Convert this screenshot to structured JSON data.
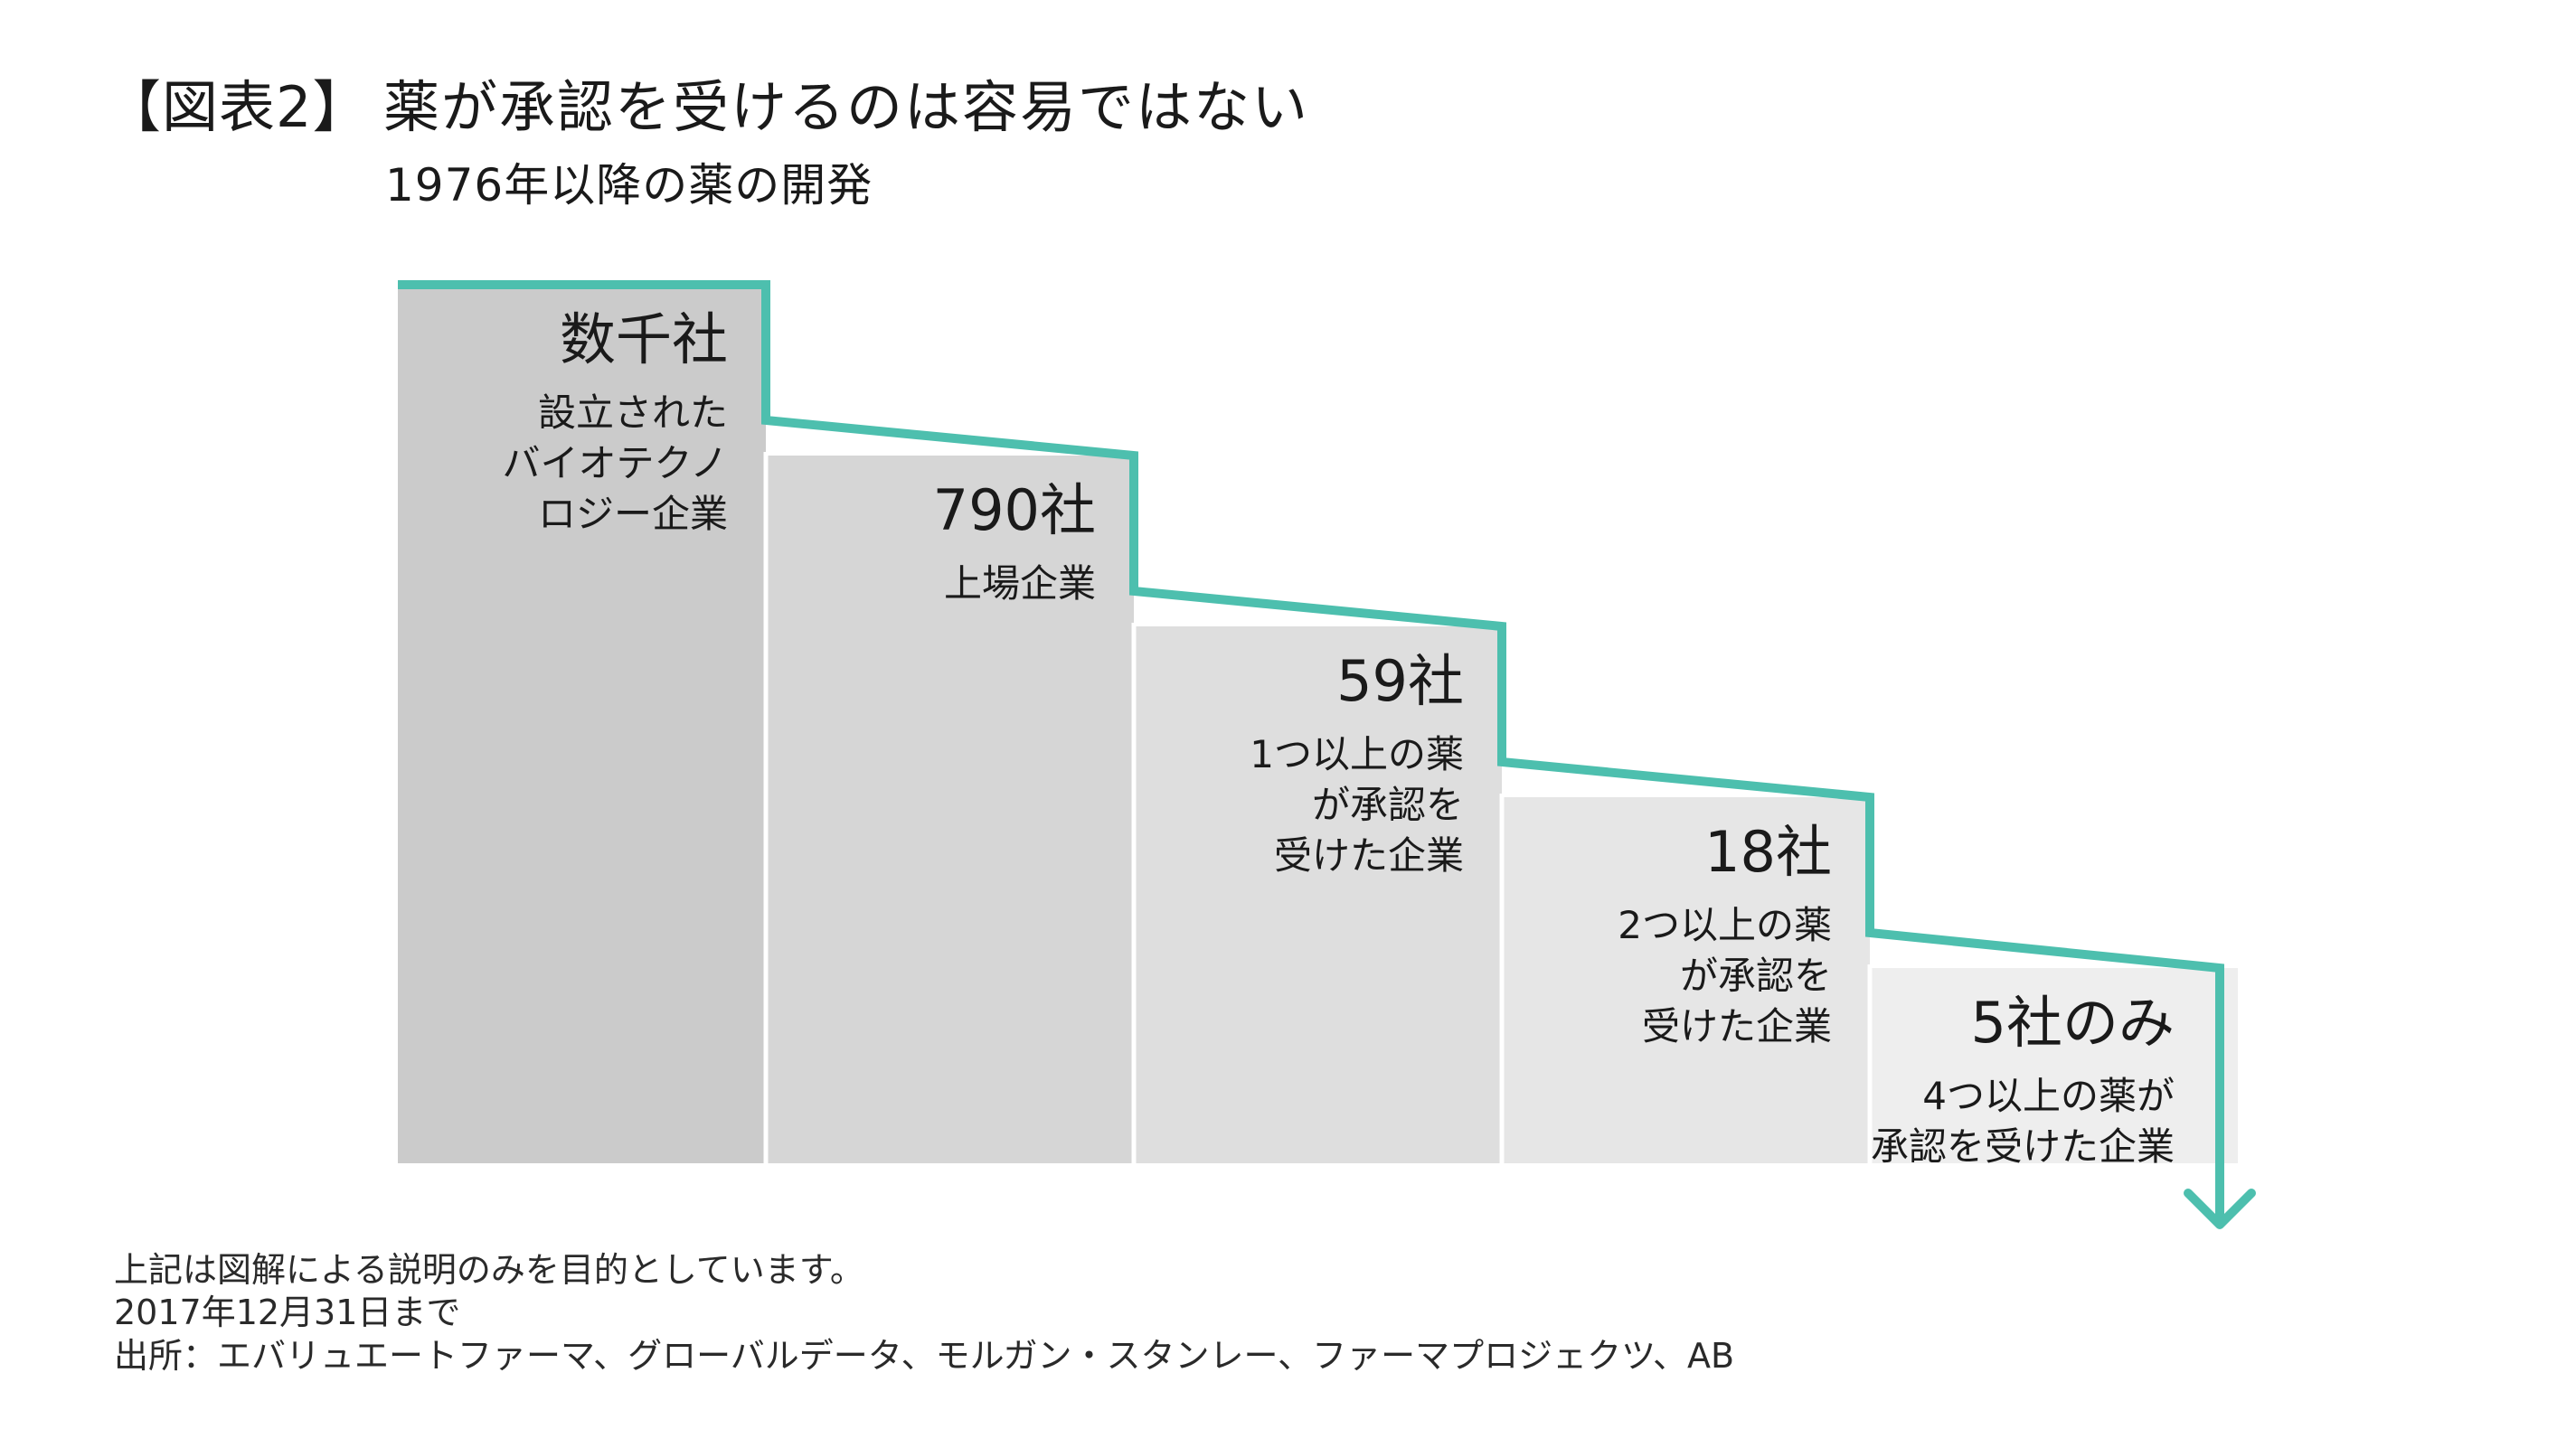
{
  "header": {
    "figure_label": "【図表2】",
    "title": "薬が承認を受けるのは容易ではない",
    "subtitle": "1976年以降の薬の開発"
  },
  "colors": {
    "accent": "#4dbfae",
    "bar_shades": [
      "#cbcbcb",
      "#d6d6d6",
      "#dedede",
      "#e6e6e6",
      "#eeeeee"
    ],
    "text": "#1a1a1a"
  },
  "chart_data": {
    "type": "bar",
    "title": "",
    "xlabel": "",
    "ylabel": "",
    "categories": [
      "数千社",
      "790社",
      "59社",
      "18社",
      "5社のみ"
    ],
    "values": [
      null,
      790,
      59,
      18,
      5
    ],
    "labels": [
      {
        "count": "数千社",
        "desc": [
          "設立された",
          "バイオテクノ",
          "ロジー企業"
        ]
      },
      {
        "count": "790社",
        "desc": [
          "上場企業"
        ]
      },
      {
        "count": "59社",
        "desc": [
          "1つ以上の薬",
          "が承認を",
          "受けた企業"
        ]
      },
      {
        "count": "18社",
        "desc": [
          "2つ以上の薬",
          "が承認を",
          "受けた企業"
        ]
      },
      {
        "count": "5社のみ",
        "desc": [
          "4つ以上の薬が",
          "承認を受けた企業"
        ]
      }
    ],
    "levels": [
      1.0,
      0.8,
      0.6,
      0.4,
      0.2
    ],
    "grid": false,
    "legend": "none",
    "annotation": "staircase-arrow-down"
  },
  "footnotes": [
    "上記は図解による説明のみを目的としています。",
    "2017年12月31日まで",
    "出所：エバリュエートファーマ、グローバルデータ、モルガン・スタンレー、ファーマプロジェクツ、AB"
  ]
}
